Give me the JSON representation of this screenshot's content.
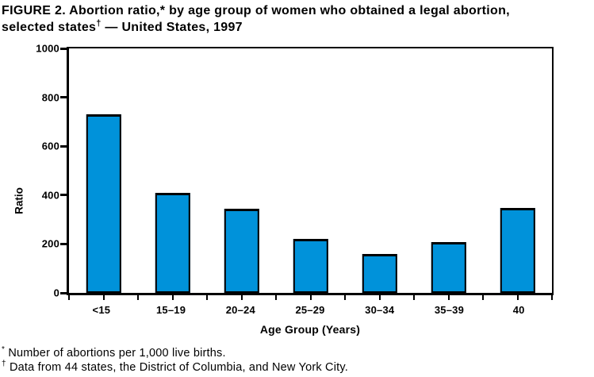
{
  "title": {
    "line1": "FIGURE 2. Abortion ratio,* by age group of women who obtained a legal abortion,",
    "line2_pre": "selected states",
    "line2_marker": "†",
    "line2_post": " — United States, 1997"
  },
  "chart_data": {
    "type": "bar",
    "title": "FIGURE 2. Abortion ratio, by age group of women who obtained a legal abortion, selected states — United States, 1997",
    "categories": [
      "<15",
      "15–19",
      "20–24",
      "25–29",
      "30–34",
      "35–39",
      "40"
    ],
    "values": [
      730,
      408,
      345,
      220,
      158,
      209,
      347
    ],
    "xlabel": "Age Group (Years)",
    "ylabel": "Ratio",
    "ylim": [
      0,
      1000
    ],
    "yticks": [
      0,
      200,
      400,
      600,
      800,
      1000
    ],
    "grid": false,
    "legend": null,
    "bar_color": "#0092da",
    "bar_border_color": "#000000",
    "axis_color": "#000000",
    "background_color": "#ffffff"
  },
  "footnotes": [
    {
      "marker": "*",
      "text": "Number of abortions per 1,000 live births."
    },
    {
      "marker": "†",
      "text": "Data from 44 states, the District of Columbia, and New York City."
    }
  ]
}
